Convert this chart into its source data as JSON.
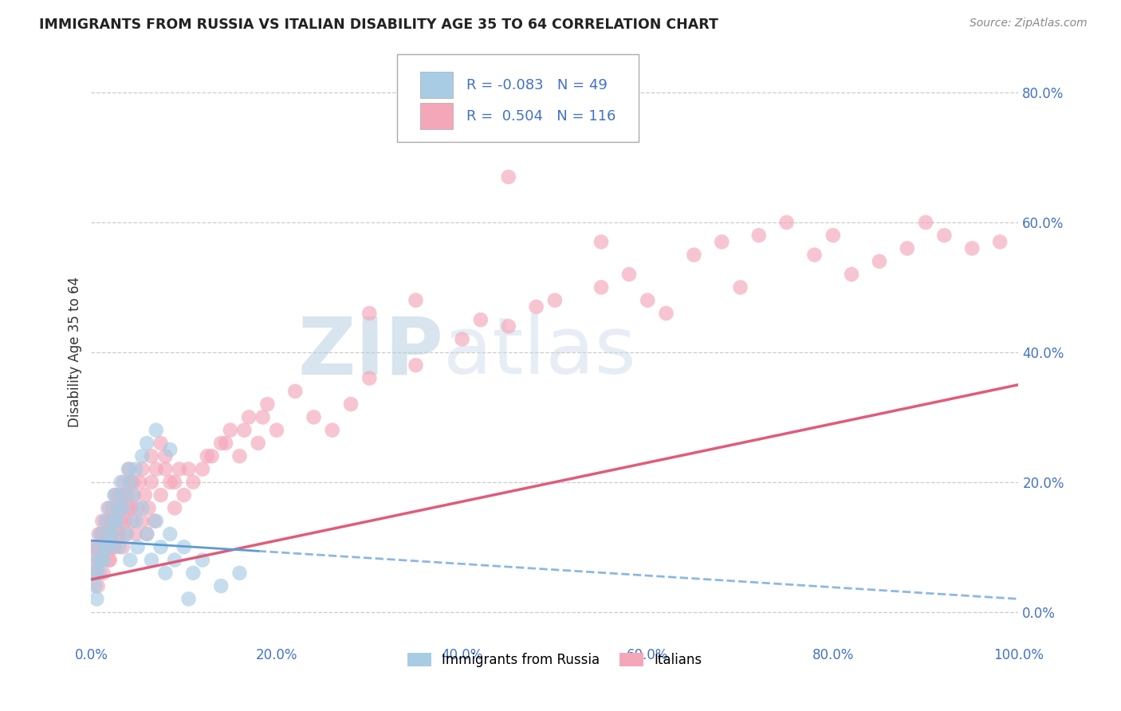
{
  "title": "IMMIGRANTS FROM RUSSIA VS ITALIAN DISABILITY AGE 35 TO 64 CORRELATION CHART",
  "source": "Source: ZipAtlas.com",
  "ylabel": "Disability Age 35 to 64",
  "legend_labels": [
    "Immigrants from Russia",
    "Italians"
  ],
  "R_russia": -0.083,
  "N_russia": 49,
  "R_italian": 0.504,
  "N_italian": 116,
  "blue_color": "#a8cce4",
  "pink_color": "#f4a7b9",
  "blue_line_color": "#5b9bd5",
  "pink_line_color": "#e05c7a",
  "watermark_color": "#c5d8e8",
  "grid_color": "#cccccc",
  "tick_color": "#4472c4",
  "title_color": "#222222",
  "source_color": "#888888",
  "xlim": [
    0,
    100
  ],
  "ylim": [
    -5,
    85
  ],
  "yticks": [
    0,
    20,
    40,
    60,
    80
  ],
  "ytick_labels": [
    "0.0%",
    "20.0%",
    "40.0%",
    "60.0%",
    "80.0%"
  ],
  "xticks": [
    0,
    20,
    40,
    60,
    80,
    100
  ],
  "xtick_labels": [
    "0.0%",
    "20.0%",
    "40.0%",
    "60.0%",
    "80.0%",
    "100.0%"
  ],
  "russia_x": [
    0.3,
    0.5,
    0.8,
    1.0,
    1.2,
    1.5,
    1.8,
    2.0,
    2.2,
    2.5,
    2.8,
    3.0,
    3.2,
    3.5,
    3.8,
    4.0,
    4.2,
    4.5,
    4.8,
    5.0,
    5.5,
    6.0,
    6.5,
    7.0,
    7.5,
    8.0,
    8.5,
    9.0,
    10.0,
    11.0,
    12.0,
    14.0,
    16.0,
    0.4,
    0.6,
    0.9,
    1.3,
    1.7,
    2.1,
    2.6,
    3.0,
    3.4,
    4.2,
    4.8,
    5.5,
    6.0,
    7.0,
    8.5,
    10.5
  ],
  "russia_y": [
    8.0,
    6.0,
    10.0,
    12.0,
    8.0,
    14.0,
    10.0,
    16.0,
    12.0,
    18.0,
    14.0,
    10.0,
    20.0,
    16.0,
    12.0,
    22.0,
    8.0,
    18.0,
    14.0,
    10.0,
    16.0,
    12.0,
    8.0,
    14.0,
    10.0,
    6.0,
    12.0,
    8.0,
    10.0,
    6.0,
    8.0,
    4.0,
    6.0,
    4.0,
    2.0,
    6.0,
    8.0,
    10.0,
    12.0,
    14.0,
    16.0,
    18.0,
    20.0,
    22.0,
    24.0,
    26.0,
    28.0,
    25.0,
    2.0
  ],
  "italian_x": [
    0.2,
    0.4,
    0.6,
    0.8,
    1.0,
    1.2,
    1.4,
    1.6,
    1.8,
    2.0,
    2.2,
    2.4,
    2.6,
    2.8,
    3.0,
    3.2,
    3.4,
    3.6,
    3.8,
    4.0,
    4.2,
    4.4,
    4.6,
    4.8,
    5.0,
    5.2,
    5.5,
    5.8,
    6.0,
    6.2,
    6.5,
    6.8,
    7.0,
    7.5,
    8.0,
    8.5,
    9.0,
    9.5,
    10.0,
    11.0,
    12.0,
    13.0,
    14.0,
    15.0,
    16.0,
    17.0,
    18.0,
    19.0,
    20.0,
    22.0,
    24.0,
    26.0,
    28.0,
    30.0,
    35.0,
    40.0,
    42.0,
    45.0,
    48.0,
    50.0,
    55.0,
    58.0,
    60.0,
    62.0,
    65.0,
    68.0,
    70.0,
    72.0,
    75.0,
    78.0,
    80.0,
    82.0,
    85.0,
    88.0,
    90.0,
    92.0,
    95.0,
    98.0,
    0.3,
    0.5,
    0.7,
    0.9,
    1.1,
    1.3,
    1.5,
    1.7,
    1.9,
    2.1,
    2.3,
    2.5,
    2.7,
    2.9,
    3.1,
    3.3,
    3.5,
    3.7,
    3.9,
    4.1,
    4.3,
    4.5,
    5.5,
    6.5,
    7.5,
    8.0,
    9.0,
    10.5,
    12.5,
    14.5,
    16.5,
    18.5,
    30.0,
    35.0,
    45.0,
    55.0
  ],
  "italian_y": [
    8.0,
    10.0,
    6.0,
    12.0,
    8.0,
    14.0,
    10.0,
    12.0,
    16.0,
    8.0,
    14.0,
    10.0,
    18.0,
    12.0,
    16.0,
    14.0,
    10.0,
    18.0,
    12.0,
    16.0,
    20.0,
    14.0,
    18.0,
    12.0,
    16.0,
    20.0,
    14.0,
    18.0,
    12.0,
    16.0,
    20.0,
    14.0,
    22.0,
    18.0,
    24.0,
    20.0,
    16.0,
    22.0,
    18.0,
    20.0,
    22.0,
    24.0,
    26.0,
    28.0,
    24.0,
    30.0,
    26.0,
    32.0,
    28.0,
    34.0,
    30.0,
    28.0,
    32.0,
    36.0,
    38.0,
    42.0,
    45.0,
    44.0,
    47.0,
    48.0,
    50.0,
    52.0,
    48.0,
    46.0,
    55.0,
    57.0,
    50.0,
    58.0,
    60.0,
    55.0,
    58.0,
    52.0,
    54.0,
    56.0,
    60.0,
    58.0,
    56.0,
    57.0,
    6.0,
    10.0,
    4.0,
    8.0,
    12.0,
    6.0,
    10.0,
    14.0,
    8.0,
    12.0,
    16.0,
    10.0,
    14.0,
    18.0,
    12.0,
    16.0,
    20.0,
    14.0,
    18.0,
    22.0,
    16.0,
    20.0,
    22.0,
    24.0,
    26.0,
    22.0,
    20.0,
    22.0,
    24.0,
    26.0,
    28.0,
    30.0,
    46.0,
    48.0,
    67.0,
    57.0
  ],
  "blue_line_x": [
    0,
    100
  ],
  "blue_line_y_start": 11.0,
  "blue_line_y_end": 2.0,
  "pink_line_x": [
    0,
    100
  ],
  "pink_line_y_start": 5.0,
  "pink_line_y_end": 35.0
}
